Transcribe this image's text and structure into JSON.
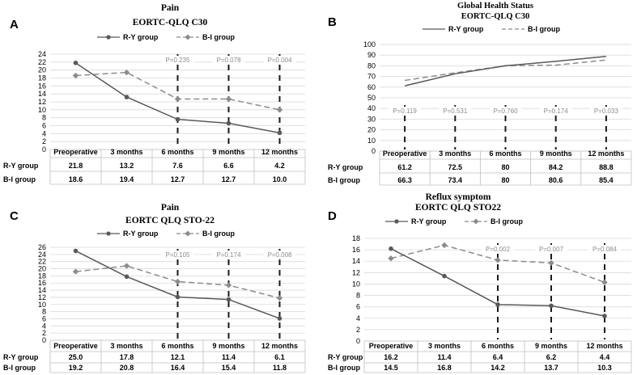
{
  "row_labels": [
    "R-Y group",
    "B-I group"
  ],
  "colors": {
    "ry": "#595959",
    "bi": "#8c8c8c",
    "grid": "#d9d9d9",
    "dash": "#1a1a1a",
    "pval": "#8c8c8c"
  },
  "chart_data": [
    {
      "type": "line",
      "panel_letter": "A",
      "title": "Pain",
      "subtitle": "EORTC-QLQ C30",
      "categories": [
        "Preoperative",
        "3 months",
        "6 months",
        "9 months",
        "12 months"
      ],
      "series": [
        {
          "name": "R-Y group",
          "values": [
            21.8,
            13.2,
            7.6,
            6.6,
            4.2
          ],
          "labels": [
            "21.8",
            "13.2",
            "7.6",
            "6.6",
            "4.2"
          ]
        },
        {
          "name": "B-I group",
          "values": [
            18.6,
            19.4,
            12.7,
            12.7,
            10.0
          ],
          "labels": [
            "18.6",
            "19.4",
            "12.7",
            "12.7",
            "10.0"
          ]
        }
      ],
      "yticks": [
        0,
        2,
        4,
        6,
        8,
        10,
        12,
        14,
        16,
        18,
        20,
        22,
        24
      ],
      "ylim": [
        0,
        24
      ],
      "pvalues": [
        "",
        "",
        "P=0.235",
        "P=0.078",
        "P=0.004"
      ],
      "pvalue_position": "top",
      "legend_position": "top-center"
    },
    {
      "type": "line",
      "panel_letter": "B",
      "title": "Global Health Status",
      "subtitle": "EORTC-QLQ C30",
      "categories": [
        "Preoperative",
        "3 months",
        "6 months",
        "9 months",
        "12 months"
      ],
      "series": [
        {
          "name": "R-Y group",
          "values": [
            61.2,
            72.5,
            80,
            84.2,
            88.8
          ],
          "labels": [
            "61.2",
            "72.5",
            "80",
            "84.2",
            "88.8"
          ]
        },
        {
          "name": "B-I group",
          "values": [
            66.3,
            73.4,
            80,
            80.6,
            85.4
          ],
          "labels": [
            "66.3",
            "73.4",
            "80",
            "80.6",
            "85.4"
          ]
        }
      ],
      "yticks": [
        0,
        10,
        20,
        30,
        40,
        50,
        60,
        70,
        80,
        90,
        100
      ],
      "ylim": [
        0,
        100
      ],
      "pvalues": [
        "P=0.119",
        "P=0.531",
        "P=0.760",
        "P=0.174",
        "P=0.033"
      ],
      "pvalue_position": "middle",
      "legend_position": "top-center"
    },
    {
      "type": "line",
      "panel_letter": "C",
      "title": "Pain",
      "subtitle": "EORTC QLQ STO-22",
      "categories": [
        "Preoperative",
        "3 months",
        "6 months",
        "9 months",
        "12 months"
      ],
      "series": [
        {
          "name": "R-Y group",
          "values": [
            25.0,
            17.8,
            12.1,
            11.4,
            6.1
          ],
          "labels": [
            "25.0",
            "17.8",
            "12.1",
            "11.4",
            "6.1"
          ]
        },
        {
          "name": "B-I group",
          "values": [
            19.2,
            20.8,
            16.4,
            15.4,
            11.8
          ],
          "labels": [
            "19.2",
            "20.8",
            "16.4",
            "15.4",
            "11.8"
          ]
        }
      ],
      "yticks": [
        0,
        2,
        4,
        6,
        8,
        10,
        12,
        14,
        16,
        18,
        20,
        22,
        24,
        26
      ],
      "ylim": [
        0,
        26
      ],
      "pvalues": [
        "",
        "",
        "P=0.105",
        "P=0.174",
        "P=0.008"
      ],
      "pvalue_position": "top",
      "legend_position": "top-center"
    },
    {
      "type": "line",
      "panel_letter": "D",
      "title": "Reflux symptom",
      "subtitle": "EORTC QLQ STO22",
      "categories": [
        "Preoperative",
        "3 months",
        "6 months",
        "9 months",
        "12 months"
      ],
      "series": [
        {
          "name": "R-Y group",
          "values": [
            16.2,
            11.4,
            6.4,
            6.2,
            4.4
          ],
          "labels": [
            "16.2",
            "11.4",
            "6.4",
            "6.2",
            "4.4"
          ]
        },
        {
          "name": "B-I group",
          "values": [
            14.5,
            16.8,
            14.2,
            13.7,
            10.3
          ],
          "labels": [
            "14.5",
            "16.8",
            "14.2",
            "13.7",
            "10.3"
          ]
        }
      ],
      "yticks": [
        0,
        2,
        4,
        6,
        8,
        10,
        12,
        14,
        16,
        18
      ],
      "ylim": [
        0,
        18
      ],
      "pvalues": [
        "",
        "",
        "P=0.002",
        "P=0.007",
        "P=0.084"
      ],
      "pvalue_position": "top",
      "legend_position": "top-center"
    }
  ]
}
